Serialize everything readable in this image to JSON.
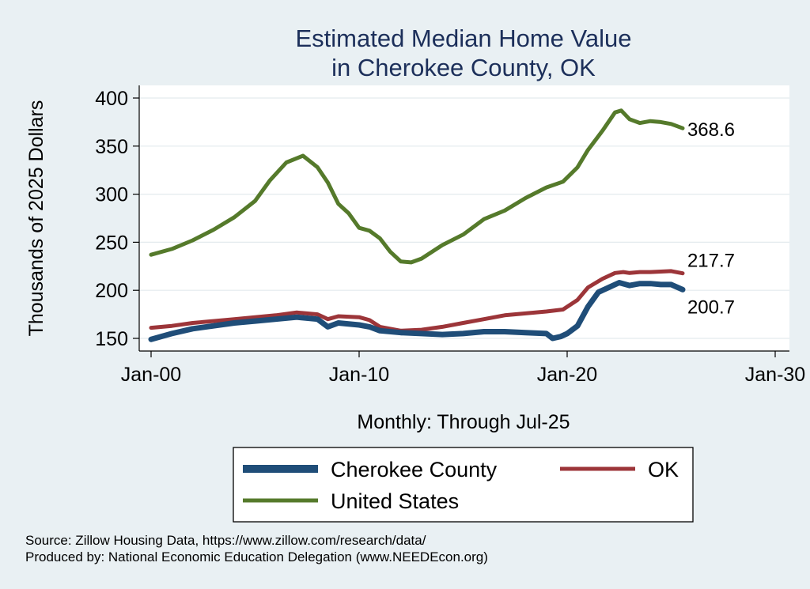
{
  "chart_data": {
    "type": "line",
    "title": "Estimated Median Home Value",
    "subtitle": "in Cherokee County, OK",
    "ylabel": "Thousands of 2025 Dollars",
    "xlabel": "Monthly: Through Jul-25",
    "xlim": [
      2000,
      2030
    ],
    "ylim": [
      140,
      405
    ],
    "x_ticks": [
      {
        "value": 2000,
        "label": "Jan-00"
      },
      {
        "value": 2010,
        "label": "Jan-10"
      },
      {
        "value": 2020,
        "label": "Jan-20"
      },
      {
        "value": 2030,
        "label": "Jan-30"
      }
    ],
    "y_ticks": [
      150,
      200,
      250,
      300,
      350,
      400
    ],
    "grid": true,
    "series": [
      {
        "name": "United States",
        "color": "#557a2b",
        "end_label": "368.6",
        "x": [
          2000.0,
          2001.0,
          2002.0,
          2003.0,
          2004.0,
          2005.0,
          2005.7,
          2006.5,
          2007.3,
          2008.0,
          2008.5,
          2009.0,
          2009.5,
          2010.0,
          2010.5,
          2011.0,
          2011.5,
          2012.0,
          2012.5,
          2013.0,
          2014.0,
          2015.0,
          2016.0,
          2017.0,
          2018.0,
          2019.0,
          2019.8,
          2020.5,
          2021.0,
          2021.7,
          2022.3,
          2022.6,
          2023.0,
          2023.5,
          2024.0,
          2024.5,
          2025.0,
          2025.55
        ],
        "values": [
          237,
          243,
          252,
          263,
          276,
          293,
          314,
          333,
          340,
          328,
          312,
          290,
          280,
          265,
          262,
          254,
          240,
          230,
          229,
          233,
          247,
          258,
          274,
          283,
          296,
          307,
          313,
          328,
          346,
          366,
          385,
          387,
          378,
          374,
          376,
          375,
          373,
          368.6
        ]
      },
      {
        "name": "OK",
        "color": "#9c3539",
        "end_label": "217.7",
        "x": [
          2000.0,
          2001.0,
          2002.0,
          2003.0,
          2004.0,
          2005.0,
          2006.0,
          2007.0,
          2008.0,
          2008.5,
          2009.0,
          2010.0,
          2010.5,
          2011.0,
          2012.0,
          2013.0,
          2014.0,
          2015.0,
          2016.0,
          2017.0,
          2018.0,
          2019.0,
          2019.8,
          2020.5,
          2021.0,
          2021.7,
          2022.3,
          2022.7,
          2023.0,
          2023.5,
          2024.0,
          2025.0,
          2025.55
        ],
        "values": [
          161,
          163,
          166,
          168,
          170,
          172,
          174,
          177,
          175,
          170,
          173,
          172,
          169,
          162,
          158,
          159,
          162,
          166,
          170,
          174,
          176,
          178,
          180,
          190,
          203,
          212,
          218,
          219,
          218,
          219,
          219,
          220,
          217.7
        ]
      },
      {
        "name": "Cherokee County",
        "color": "#1f4d78",
        "end_label": "200.7",
        "x": [
          2000.0,
          2001.0,
          2002.0,
          2003.0,
          2004.0,
          2005.0,
          2006.0,
          2007.0,
          2008.0,
          2008.5,
          2009.0,
          2010.0,
          2010.5,
          2011.0,
          2012.0,
          2013.0,
          2014.0,
          2015.0,
          2016.0,
          2017.0,
          2018.0,
          2019.0,
          2019.3,
          2019.7,
          2020.0,
          2020.5,
          2021.0,
          2021.5,
          2022.0,
          2022.5,
          2023.0,
          2023.5,
          2024.0,
          2024.5,
          2025.0,
          2025.55
        ],
        "values": [
          149,
          155,
          160,
          163,
          166,
          168,
          170,
          172,
          170,
          162,
          166,
          164,
          162,
          158,
          156,
          155,
          154,
          155,
          157,
          157,
          156,
          155,
          150,
          152,
          155,
          163,
          183,
          198,
          203,
          208,
          205,
          207,
          207,
          206,
          206,
          200.7
        ]
      }
    ],
    "legend": {
      "position": "bottom",
      "entries": [
        "Cherokee County",
        "OK",
        "United States"
      ]
    },
    "source_lines": [
      "Source: Zillow Housing Data, https://www.zillow.com/research/data/",
      "Produced by: National Economic Education Delegation (www.NEEDEcon.org)"
    ]
  }
}
